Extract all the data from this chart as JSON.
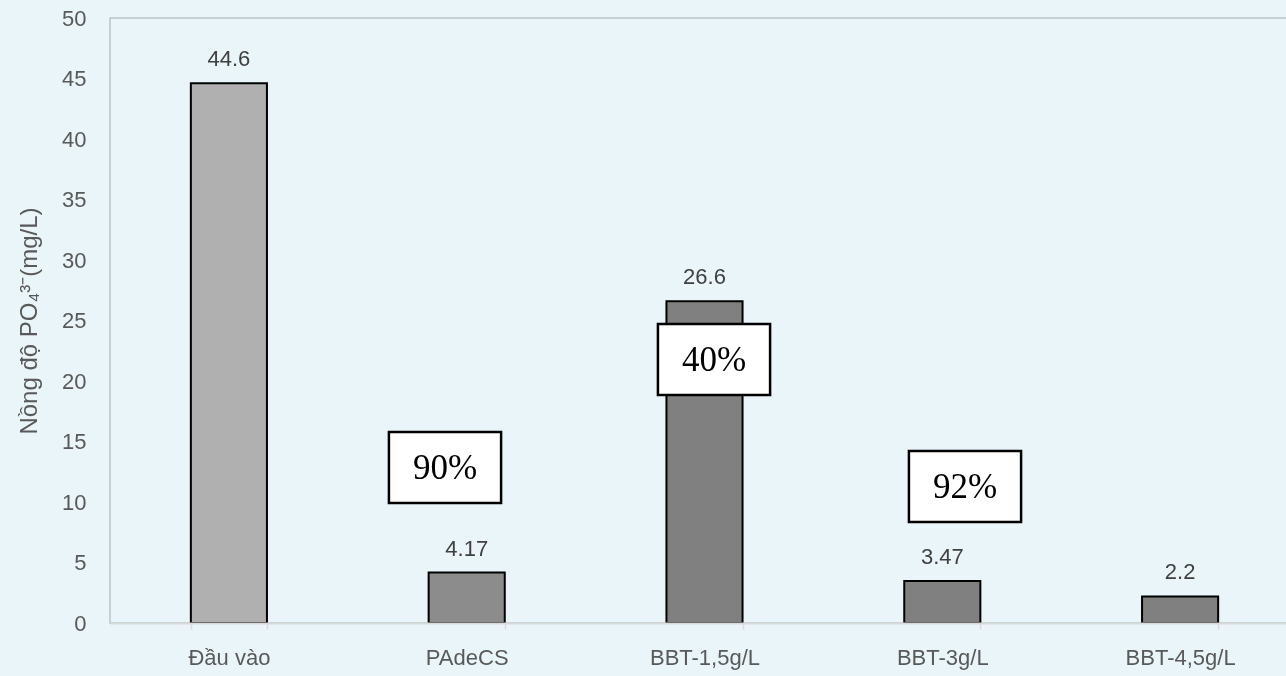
{
  "chart_data": {
    "type": "bar",
    "categories": [
      "Đầu vào",
      "PAdeCS",
      "BBT-1,5g/L",
      "BBT-3g/L",
      "BBT-4,5g/L"
    ],
    "values": [
      44.6,
      4.17,
      26.6,
      3.47,
      2.2
    ],
    "colors": [
      "#b0b0b0",
      "#8c8c8c",
      "#808080",
      "#808080",
      "#808080"
    ],
    "data_labels": true,
    "ylabel": "Nồng độ PO₄³⁻(mg/L)",
    "ylim": [
      0,
      50
    ],
    "yticks": [
      0,
      5,
      10,
      15,
      20,
      25,
      30,
      35,
      40,
      45,
      50
    ],
    "annotations": [
      "90%",
      "40%",
      "92%"
    ]
  }
}
